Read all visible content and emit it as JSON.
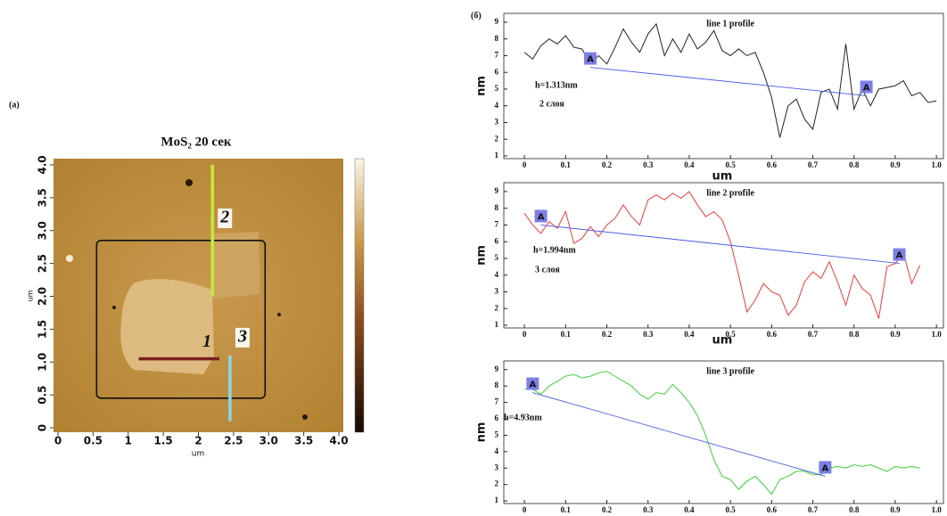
{
  "panel_a": {
    "label": "(a)",
    "title": "MoS₂ 20 сек",
    "xlabel": "um",
    "ylabel": "um",
    "xlim": [
      0,
      4
    ],
    "ylim": [
      0,
      4
    ],
    "xticks": [
      0,
      0.5,
      1,
      1.5,
      2,
      2.5,
      {
        "value": 3,
        "label": "3.0"
      },
      3.5,
      {
        "value": 4,
        "label": "4.0"
      }
    ],
    "yticks": [
      0,
      0.5,
      {
        "value": 1,
        "label": "1.0"
      },
      1.5,
      {
        "value": 2,
        "label": "2.0"
      },
      2.5,
      {
        "value": 3,
        "label": "3.0"
      },
      3.5,
      {
        "value": 4,
        "label": "4.0"
      }
    ],
    "profile_lines": [
      {
        "label": "1",
        "color": "#7a1f1f",
        "x": [
          1.15,
          2.3
        ],
        "y": [
          1.05,
          1.05
        ]
      },
      {
        "label": "2",
        "color": "#c6e83a",
        "x": [
          2.2,
          2.2
        ],
        "y": [
          2.0,
          4.0
        ]
      },
      {
        "label": "3",
        "color": "#8fd6e6",
        "x": [
          2.45,
          2.45
        ],
        "y": [
          0.1,
          1.1
        ]
      }
    ]
  },
  "panel_b_label": "(б)",
  "chart_data": [
    {
      "type": "line",
      "title": "line 1 profile",
      "xlabel": "um",
      "ylabel": "nm",
      "xlim": [
        -0.05,
        1.017
      ],
      "ylim": [
        0.84,
        9.53
      ],
      "xticks": [
        0,
        0.1,
        0.2,
        0.3,
        0.4,
        0.5,
        0.6,
        0.7,
        0.8,
        0.9,
        {
          "value": 1,
          "label": "1.0"
        }
      ],
      "yticks": [
        1,
        2,
        3,
        4,
        5,
        6,
        7,
        8,
        9
      ],
      "x": [
        0,
        0.02,
        0.04,
        0.06,
        0.08,
        0.1,
        0.12,
        0.14,
        0.16,
        0.18,
        0.2,
        0.22,
        0.24,
        0.26,
        0.28,
        0.3,
        0.32,
        0.34,
        0.36,
        0.38,
        0.4,
        0.42,
        0.44,
        0.46,
        0.48,
        0.5,
        0.52,
        0.54,
        0.56,
        0.58,
        0.6,
        0.62,
        0.64,
        0.66,
        0.68,
        0.7,
        0.72,
        0.74,
        0.76,
        0.78,
        0.8,
        0.82,
        0.84,
        0.86,
        0.88,
        0.9,
        0.92,
        0.94,
        0.96,
        0.98,
        1.0
      ],
      "series": [
        {
          "color": "#222222",
          "values": [
            7.2,
            6.8,
            7.6,
            8.0,
            7.7,
            8.2,
            7.5,
            7.4,
            6.5,
            7.0,
            6.5,
            7.5,
            8.6,
            7.8,
            7.2,
            8.3,
            8.9,
            7.0,
            8.0,
            7.2,
            8.3,
            7.4,
            7.8,
            8.5,
            7.3,
            7.0,
            7.4,
            7.0,
            7.2,
            6.0,
            4.5,
            2.1,
            4.0,
            4.4,
            3.2,
            2.6,
            4.8,
            5.0,
            3.8,
            7.7,
            3.8,
            5.0,
            4.0,
            5.0,
            5.1,
            5.2,
            5.5,
            4.6,
            4.8,
            4.2,
            4.3
          ]
        }
      ],
      "measure": {
        "x": [
          0.16,
          0.83
        ],
        "y": [
          6.3,
          4.6
        ],
        "labels": [
          "A",
          "A"
        ]
      },
      "annotations": [
        "h=1.313nm",
        "2 слоя"
      ]
    },
    {
      "type": "line",
      "title": "line 2 profile",
      "xlabel": "um",
      "ylabel": "nm",
      "xlim": [
        -0.05,
        1.017
      ],
      "ylim": [
        0.84,
        9.53
      ],
      "xticks": [
        0,
        0.1,
        0.2,
        0.3,
        0.4,
        0.5,
        0.6,
        0.7,
        0.8,
        0.9,
        {
          "value": 1,
          "label": "1.0"
        }
      ],
      "yticks": [
        1,
        2,
        3,
        4,
        5,
        6,
        7,
        8,
        9
      ],
      "x": [
        0,
        0.02,
        0.04,
        0.06,
        0.08,
        0.1,
        0.12,
        0.14,
        0.16,
        0.18,
        0.2,
        0.22,
        0.24,
        0.26,
        0.28,
        0.3,
        0.32,
        0.34,
        0.36,
        0.38,
        0.4,
        0.42,
        0.44,
        0.46,
        0.48,
        0.5,
        0.52,
        0.54,
        0.56,
        0.58,
        0.6,
        0.62,
        0.64,
        0.66,
        0.68,
        0.7,
        0.72,
        0.74,
        0.76,
        0.78,
        0.8,
        0.82,
        0.84,
        0.86,
        0.88,
        0.9,
        0.92,
        0.94,
        0.96
      ],
      "series": [
        {
          "color": "#ee3b3b",
          "values": [
            7.7,
            7.0,
            6.5,
            7.2,
            6.8,
            7.8,
            5.9,
            6.2,
            6.9,
            6.3,
            7.0,
            7.4,
            8.2,
            7.5,
            7.0,
            8.5,
            8.8,
            8.5,
            8.9,
            8.6,
            9.0,
            8.2,
            7.5,
            7.8,
            7.3,
            6.0,
            4.0,
            1.8,
            2.5,
            3.5,
            3.0,
            2.8,
            1.6,
            2.2,
            3.6,
            4.2,
            3.8,
            4.8,
            3.6,
            2.2,
            4.0,
            3.2,
            2.8,
            1.4,
            4.5,
            4.7,
            5.3,
            3.5,
            4.6
          ]
        }
      ],
      "measure": {
        "x": [
          0.04,
          0.91
        ],
        "y": [
          7.0,
          4.7
        ],
        "labels": [
          "A",
          "A"
        ]
      },
      "annotations": [
        "h=1.994nm",
        "3 слоя"
      ]
    },
    {
      "type": "line",
      "title": "line 3 profile",
      "ylabel": "nm",
      "xlim": [
        -0.05,
        1.017
      ],
      "ylim": [
        0.84,
        9.53
      ],
      "xticks": [
        0,
        0.1,
        0.2,
        0.3,
        0.4,
        0.5,
        0.6,
        0.7,
        0.8,
        0.9,
        {
          "value": 1,
          "label": "1.0"
        }
      ],
      "yticks": [
        1,
        2,
        3,
        4,
        5,
        6,
        7,
        8,
        9
      ],
      "x": [
        0,
        0.02,
        0.04,
        0.06,
        0.08,
        0.1,
        0.12,
        0.14,
        0.16,
        0.18,
        0.2,
        0.22,
        0.24,
        0.26,
        0.28,
        0.3,
        0.32,
        0.34,
        0.36,
        0.38,
        0.4,
        0.42,
        0.44,
        0.46,
        0.48,
        0.5,
        0.52,
        0.54,
        0.56,
        0.58,
        0.6,
        0.62,
        0.64,
        0.66,
        0.68,
        0.7,
        0.72,
        0.74,
        0.76,
        0.78,
        0.8,
        0.82,
        0.84,
        0.86,
        0.88,
        0.9,
        0.92,
        0.94,
        0.96
      ],
      "series": [
        {
          "color": "#3ccf3c",
          "values": [
            7.8,
            7.8,
            7.5,
            8.0,
            8.3,
            8.6,
            8.7,
            8.5,
            8.6,
            8.8,
            8.9,
            8.6,
            8.3,
            8.0,
            7.5,
            7.2,
            7.6,
            7.5,
            8.1,
            7.6,
            7.0,
            6.2,
            5.0,
            3.5,
            2.5,
            2.3,
            1.7,
            2.2,
            2.5,
            2.0,
            1.4,
            2.3,
            2.5,
            2.8,
            2.8,
            2.6,
            2.6,
            3.0,
            3.1,
            3.0,
            3.2,
            3.1,
            3.2,
            3.0,
            2.8,
            3.1,
            3.0,
            3.1,
            3.0
          ]
        }
      ],
      "measure": {
        "x": [
          0.02,
          0.73
        ],
        "y": [
          7.6,
          2.5
        ],
        "labels": [
          "A",
          "A"
        ]
      },
      "annotations": [
        "h=4.93nm"
      ]
    }
  ]
}
